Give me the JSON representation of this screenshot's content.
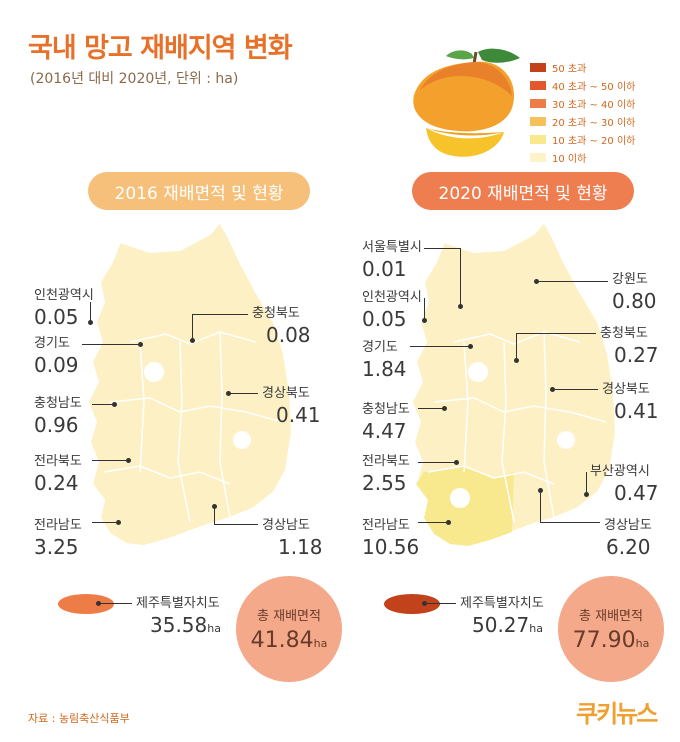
{
  "title": "국내 망고 재배지역 변화",
  "subtitle": "(2016년 대비 2020년, 단위 : ha)",
  "legend": [
    {
      "label": "50 초과",
      "color": "#c2431b"
    },
    {
      "label": "40 초과 ~ 50 이하",
      "color": "#e2582c"
    },
    {
      "label": "30 초과 ~ 40 이하",
      "color": "#ee7c47"
    },
    {
      "label": "20 초과 ~ 30 이하",
      "color": "#f6c05a"
    },
    {
      "label": "10 초과 ~ 20 이하",
      "color": "#f8e88e"
    },
    {
      "label": "10 이하",
      "color": "#fdf2c8"
    }
  ],
  "map2016": {
    "heading": "2016 재배면적 및 현황",
    "regions": [
      {
        "name": "인천광역시",
        "value": "0.05"
      },
      {
        "name": "경기도",
        "value": "0.09"
      },
      {
        "name": "충청남도",
        "value": "0.96"
      },
      {
        "name": "전라북도",
        "value": "0.24"
      },
      {
        "name": "전라남도",
        "value": "3.25"
      },
      {
        "name": "충청북도",
        "value": "0.08"
      },
      {
        "name": "경상북도",
        "value": "0.41"
      },
      {
        "name": "경상남도",
        "value": "1.18"
      }
    ],
    "jeju": {
      "name": "제주특별자치도",
      "value": "35.58",
      "unit": "ha"
    },
    "total": {
      "label": "총 재배면적",
      "value": "41.84",
      "unit": "ha"
    }
  },
  "map2020": {
    "heading": "2020 재배면적 및 현황",
    "regions": [
      {
        "name": "서울특별시",
        "value": "0.01"
      },
      {
        "name": "인천광역시",
        "value": "0.05"
      },
      {
        "name": "경기도",
        "value": "1.84"
      },
      {
        "name": "충청남도",
        "value": "4.47"
      },
      {
        "name": "전라북도",
        "value": "2.55"
      },
      {
        "name": "전라남도",
        "value": "10.56"
      },
      {
        "name": "강원도",
        "value": "0.80"
      },
      {
        "name": "충청북도",
        "value": "0.27"
      },
      {
        "name": "경상북도",
        "value": "0.41"
      },
      {
        "name": "부산광역시",
        "value": "0.47"
      },
      {
        "name": "경상남도",
        "value": "6.20"
      }
    ],
    "jeju": {
      "name": "제주특별자치도",
      "value": "50.27",
      "unit": "ha"
    },
    "total": {
      "label": "총 재배면적",
      "value": "77.90",
      "unit": "ha"
    }
  },
  "source": "자료 : 농림축산식품부",
  "brand": "쿠키뉴스"
}
